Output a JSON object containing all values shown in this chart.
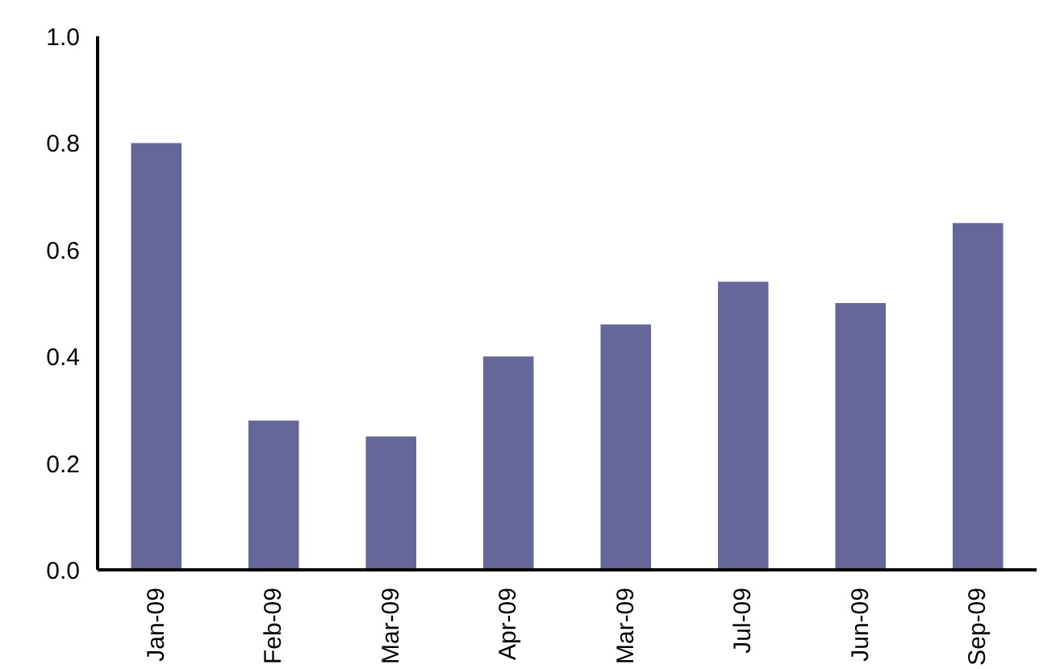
{
  "chart_data": {
    "type": "bar",
    "categories": [
      "Jan-09",
      "Feb-09",
      "Mar-09",
      "Apr-09",
      "Mar-09",
      "Jul-09",
      "Jun-09",
      "Sep-09"
    ],
    "values": [
      0.8,
      0.28,
      0.25,
      0.4,
      0.46,
      0.54,
      0.5,
      0.65
    ],
    "color": "#666699",
    "ylim": [
      0,
      1.0
    ],
    "yticks": [
      {
        "value": 0,
        "label": "0.0"
      },
      {
        "value": 0.2,
        "label": "0.2"
      },
      {
        "value": 0.4,
        "label": "0.4"
      },
      {
        "value": 0.6,
        "label": "0.6"
      },
      {
        "value": 0.8,
        "label": "0.8"
      },
      {
        "value": 1.0,
        "label": "1.0"
      }
    ],
    "grid": false
  }
}
